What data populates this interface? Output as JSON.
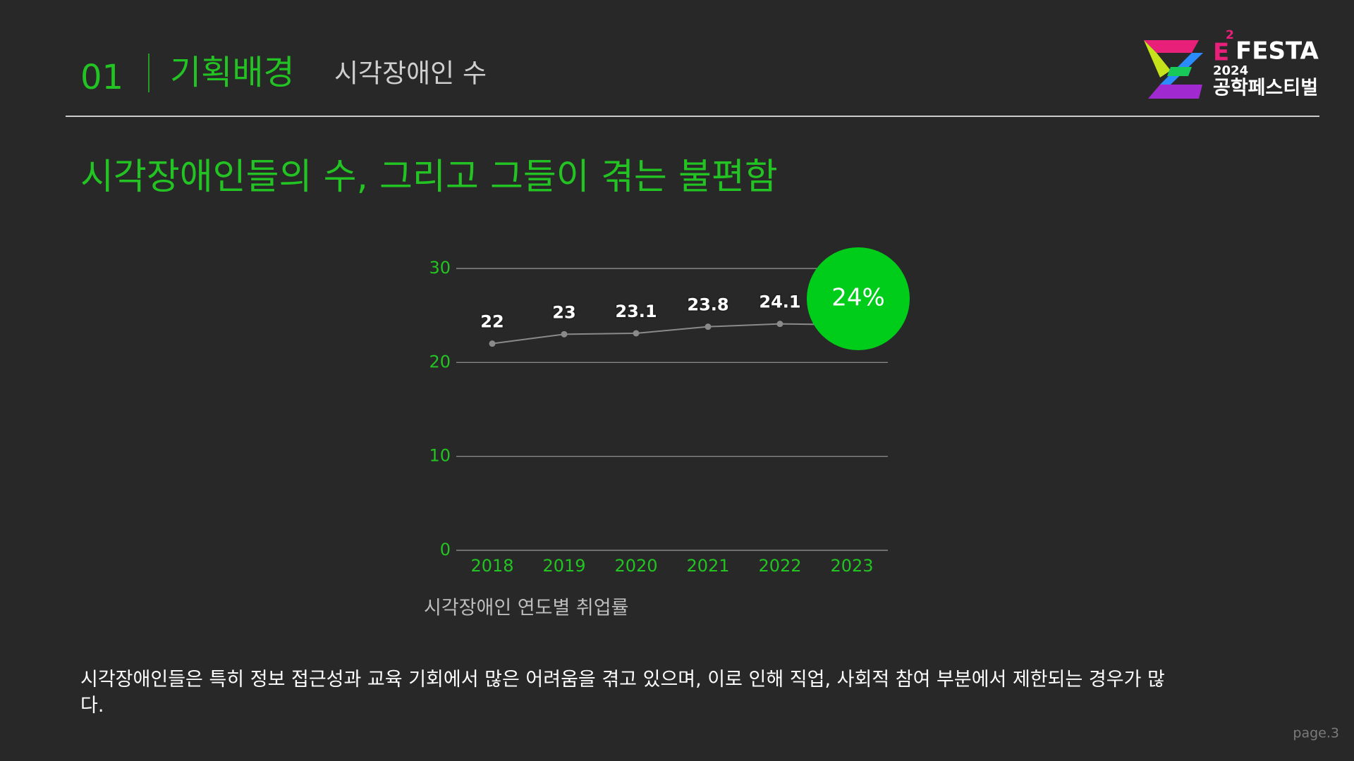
{
  "header": {
    "number": "01",
    "section": "기획배경",
    "subtitle": "시각장애인 수"
  },
  "logo": {
    "letter": "E",
    "superscript": "2",
    "name": "FESTA",
    "year": "2024",
    "korean": "공학페스티벌"
  },
  "heading": "시각장애인들의 수, 그리고 그들이 겪는 불편함",
  "chart_data": {
    "type": "line",
    "title": "시각장애인 연도별 취업률",
    "categories": [
      "2018",
      "2019",
      "2020",
      "2021",
      "2022",
      "2023"
    ],
    "values": [
      22,
      23,
      23.1,
      23.8,
      24.1,
      24
    ],
    "value_labels": [
      "22",
      "23",
      "23.1",
      "23.8",
      "24.1",
      "24%"
    ],
    "color": "#8a8a8a",
    "highlight_color": "#00cc1a",
    "ylim": [
      0,
      30
    ],
    "yticks": [
      0,
      10,
      20,
      30
    ],
    "grid": true
  },
  "body": "시각장애인들은 특히 정보 접근성과 교육 기회에서 많은 어려움을 겪고 있으며, 이로 인해 직업, 사회적 참여 부분에서 제한되는 경우가 많다.",
  "footer": {
    "page": "page.3"
  }
}
